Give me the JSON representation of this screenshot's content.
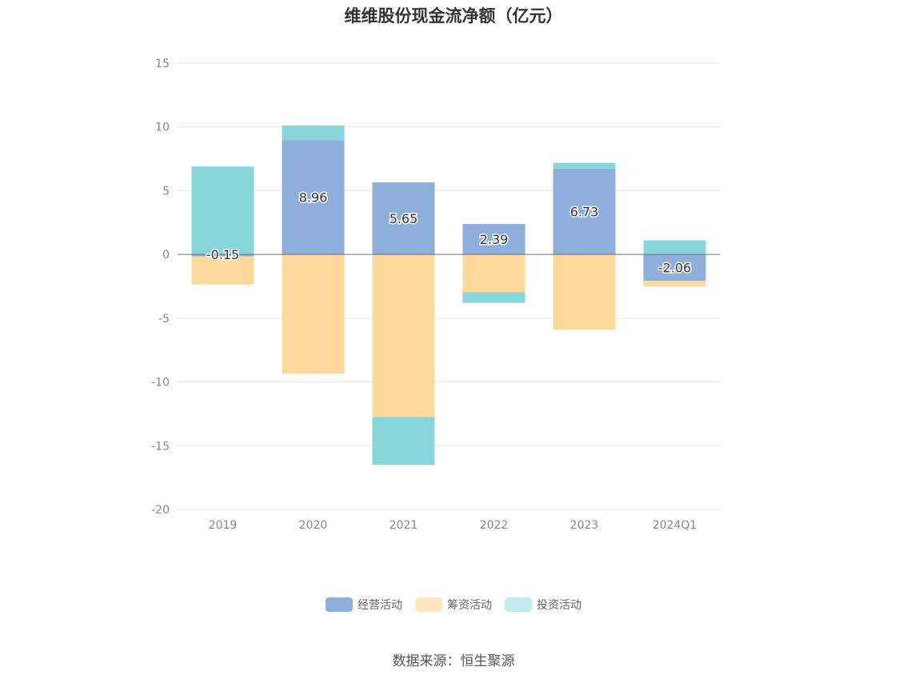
{
  "chart_data": {
    "type": "bar",
    "stacked": true,
    "title": "维维股份现金流净额（亿元）",
    "categories": [
      "2019",
      "2020",
      "2021",
      "2022",
      "2023",
      "2024Q1"
    ],
    "series": [
      {
        "name": "经营活动",
        "color": "#8eaedb",
        "values": [
          -0.15,
          8.96,
          5.65,
          2.39,
          6.73,
          -2.06
        ]
      },
      {
        "name": "筹资活动",
        "color": "#fed99b",
        "values": [
          -2.2,
          -9.35,
          -12.75,
          -2.95,
          -5.9,
          -0.45
        ]
      },
      {
        "name": "投资活动",
        "color": "#87d6d9",
        "values": [
          6.9,
          1.15,
          -3.75,
          -0.85,
          0.45,
          1.1
        ]
      }
    ],
    "data_labels": [
      "-0.15",
      "8.96",
      "5.65",
      "2.39",
      "6.73",
      "-2.06"
    ],
    "ylim": [
      -20,
      15
    ],
    "yticks": [
      15,
      10,
      5,
      0,
      -5,
      -10,
      -15,
      -20
    ],
    "grid": true,
    "legend_position": "bottom",
    "legend_colors": [
      "#8eaedb",
      "#fee6c3",
      "#c3eaec"
    ]
  },
  "source": "数据来源：恒生聚源"
}
